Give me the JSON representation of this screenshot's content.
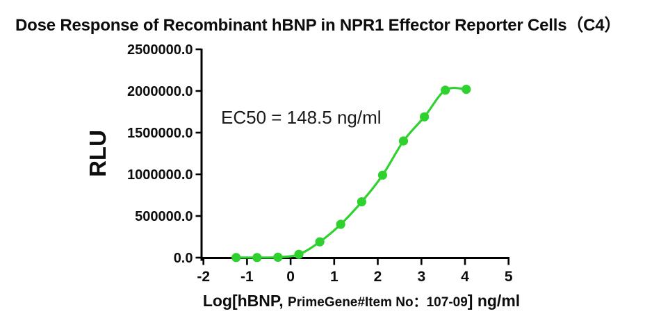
{
  "title": "Dose Response of Recombinant hBNP in NPR1 Effector Reporter Cells（C4）",
  "annotation": {
    "ec50_label": "EC50 = 148.5 ng/ml"
  },
  "y_axis": {
    "label": "RLU"
  },
  "x_axis": {
    "label_parts": [
      "Log[hBNP, ",
      "PrimeGene#Item No：107-09",
      "] ng/ml"
    ]
  },
  "chart_data": {
    "type": "scatter",
    "title": "Dose Response of Recombinant hBNP in NPR1 Effector Reporter Cells（C4）",
    "xlabel": "Log[hBNP, PrimeGene#Item No：107-09] ng/ml",
    "ylabel": "RLU",
    "annotation": "EC50 = 148.5 ng/ml",
    "ec50_ng_ml": 148.5,
    "x": [
      -1.25,
      -0.77,
      -0.29,
      0.19,
      0.67,
      1.15,
      1.63,
      2.11,
      2.59,
      3.07,
      3.55,
      4.03
    ],
    "y": [
      2000,
      2000,
      5000,
      40000,
      190000,
      400000,
      670000,
      990000,
      1400000,
      1690000,
      2010000,
      2020000
    ],
    "x_ticks": [
      -2,
      -1,
      0,
      1,
      2,
      3,
      4,
      5
    ],
    "x_tick_labels": [
      "-2",
      "-1",
      "0",
      "1",
      "2",
      "3",
      "4",
      "5"
    ],
    "y_ticks": [
      0,
      500000,
      1000000,
      1500000,
      2000000,
      2500000
    ],
    "y_tick_labels": [
      "0.0",
      "500000.0",
      "1000000.0",
      "1500000.0",
      "2000000.0",
      "2500000.0"
    ],
    "xlim": [
      -2,
      5
    ],
    "ylim": [
      0,
      2500000
    ],
    "series_color": "#2ed12e",
    "axis_color": "#000000",
    "curve": "smooth-fit-through-points",
    "grid": false,
    "legend": "none"
  }
}
